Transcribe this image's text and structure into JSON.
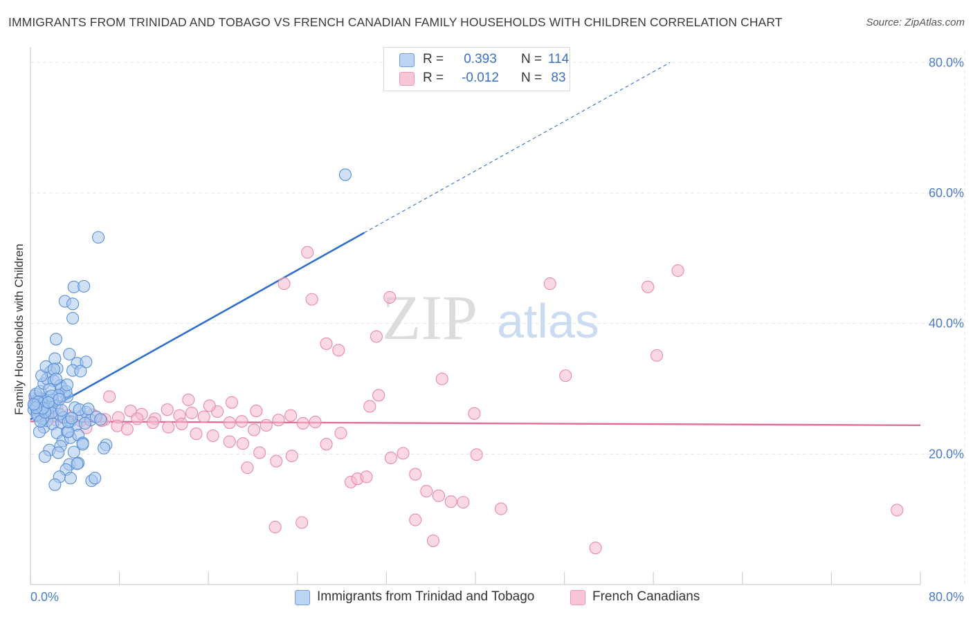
{
  "title": "IMMIGRANTS FROM TRINIDAD AND TOBAGO VS FRENCH CANADIAN FAMILY HOUSEHOLDS WITH CHILDREN CORRELATION CHART",
  "source": "Source: ZipAtlas.com",
  "watermark": {
    "zip": "ZIP",
    "atlas": "atlas"
  },
  "legend": {
    "rows": [
      {
        "r_label": "R =",
        "r_value": "0.393",
        "n_label": "N =",
        "n_value": "114"
      },
      {
        "r_label": "R =",
        "r_value": "-0.012",
        "n_label": "N =",
        "n_value": "83"
      }
    ]
  },
  "colors": {
    "blue_fill": "#a9c8ef",
    "blue_stroke": "#5a8fd6",
    "blue_line": "#2f6fcf",
    "pink_fill": "#f6b9cc",
    "pink_stroke": "#e889a8",
    "pink_line": "#e36c93",
    "grid": "#e3e3e3",
    "tick_label": "#4a7cc9"
  },
  "chart_data": {
    "type": "scatter",
    "title": "IMMIGRANTS FROM TRINIDAD AND TOBAGO VS FRENCH CANADIAN FAMILY HOUSEHOLDS WITH CHILDREN CORRELATION CHART",
    "xlabel": "",
    "ylabel": "Family Households with Children",
    "xlim": [
      0,
      80
    ],
    "ylim": [
      0,
      83
    ],
    "x_tick_labels": [
      "0.0%",
      "80.0%"
    ],
    "y_ticks": [
      20,
      40,
      60,
      80
    ],
    "y_tick_labels": [
      "20.0%",
      "40.0%",
      "60.0%",
      "80.0%"
    ],
    "grid": true,
    "legend_position": "top-center",
    "series": [
      {
        "name": "Immigrants from Trinidad and Tobago",
        "color": "#a9c8ef",
        "trend": {
          "x": [
            0,
            30
          ],
          "y": [
            25.3,
            53.9
          ],
          "extended_to": [
            57.5,
            80
          ]
        },
        "points": [
          [
            0.3,
            26.8
          ],
          [
            0.4,
            27.5
          ],
          [
            0.5,
            28.2
          ],
          [
            0.6,
            26.3
          ],
          [
            0.7,
            27.9
          ],
          [
            0.8,
            28.6
          ],
          [
            0.9,
            27.1
          ],
          [
            1.0,
            26.0
          ],
          [
            1.1,
            28.4
          ],
          [
            1.2,
            27.7
          ],
          [
            0.4,
            28.9
          ],
          [
            0.6,
            27.3
          ],
          [
            0.8,
            26.6
          ],
          [
            1.0,
            27.8
          ],
          [
            1.3,
            28.1
          ],
          [
            1.5,
            26.9
          ],
          [
            0.5,
            29.2
          ],
          [
            0.7,
            25.8
          ],
          [
            1.4,
            27.5
          ],
          [
            1.6,
            28.7
          ],
          [
            1.8,
            27.2
          ],
          [
            2.0,
            26.5
          ],
          [
            0.9,
            29.6
          ],
          [
            1.2,
            30.8
          ],
          [
            1.5,
            31.5
          ],
          [
            1.8,
            32.6
          ],
          [
            2.1,
            31.2
          ],
          [
            2.4,
            33.1
          ],
          [
            2.7,
            30.5
          ],
          [
            3.0,
            29.4
          ],
          [
            3.3,
            28.8
          ],
          [
            1.0,
            32.0
          ],
          [
            1.4,
            33.4
          ],
          [
            2.2,
            34.6
          ],
          [
            3.5,
            35.3
          ],
          [
            4.2,
            33.9
          ],
          [
            5.0,
            34.1
          ],
          [
            3.8,
            32.8
          ],
          [
            4.5,
            32.7
          ],
          [
            2.8,
            30.1
          ],
          [
            3.2,
            29.6
          ],
          [
            2.5,
            29.0
          ],
          [
            2.0,
            28.3
          ],
          [
            1.7,
            29.9
          ],
          [
            2.3,
            37.6
          ],
          [
            3.1,
            43.4
          ],
          [
            3.9,
            45.6
          ],
          [
            4.8,
            45.7
          ],
          [
            3.8,
            43.0
          ],
          [
            3.8,
            40.8
          ],
          [
            6.1,
            53.2
          ],
          [
            1.2,
            24.1
          ],
          [
            1.5,
            25.1
          ],
          [
            2.0,
            24.6
          ],
          [
            2.4,
            23.2
          ],
          [
            2.8,
            24.8
          ],
          [
            3.3,
            23.4
          ],
          [
            3.6,
            25.0
          ],
          [
            4.1,
            24.4
          ],
          [
            4.6,
            25.8
          ],
          [
            5.0,
            26.4
          ],
          [
            5.4,
            25.2
          ],
          [
            5.9,
            25.7
          ],
          [
            6.3,
            25.3
          ],
          [
            2.9,
            22.0
          ],
          [
            3.6,
            22.5
          ],
          [
            4.3,
            22.9
          ],
          [
            4.7,
            21.7
          ],
          [
            3.4,
            23.4
          ],
          [
            2.7,
            21.2
          ],
          [
            4.7,
            21.5
          ],
          [
            6.8,
            21.4
          ],
          [
            6.6,
            20.9
          ],
          [
            1.7,
            20.6
          ],
          [
            2.5,
            20.2
          ],
          [
            3.9,
            20.3
          ],
          [
            3.5,
            18.4
          ],
          [
            4.3,
            18.6
          ],
          [
            3.2,
            17.6
          ],
          [
            3.6,
            16.3
          ],
          [
            4.2,
            18.5
          ],
          [
            2.6,
            16.5
          ],
          [
            2.2,
            15.3
          ],
          [
            5.5,
            15.9
          ],
          [
            5.8,
            16.3
          ],
          [
            1.3,
            19.6
          ],
          [
            0.8,
            23.4
          ],
          [
            1.1,
            25.4
          ],
          [
            0.6,
            26.0
          ],
          [
            0.9,
            25.0
          ],
          [
            1.6,
            26.9
          ],
          [
            2.2,
            27.4
          ],
          [
            2.6,
            26.1
          ],
          [
            3.0,
            25.6
          ],
          [
            3.4,
            24.9
          ],
          [
            4.0,
            27.1
          ],
          [
            4.4,
            26.8
          ],
          [
            5.2,
            26.9
          ],
          [
            1.9,
            26.3
          ],
          [
            1.3,
            26.4
          ],
          [
            0.7,
            28.0
          ],
          [
            2.8,
            26.7
          ],
          [
            3.7,
            25.5
          ],
          [
            4.9,
            24.7
          ],
          [
            1.1,
            27.0
          ],
          [
            1.9,
            28.9
          ],
          [
            2.6,
            28.4
          ],
          [
            3.3,
            30.6
          ],
          [
            2.1,
            33.0
          ],
          [
            0.5,
            27.1
          ],
          [
            1.6,
            27.9
          ],
          [
            28.3,
            62.8
          ],
          [
            0.3,
            27.6
          ],
          [
            2.3,
            31.5
          ]
        ]
      },
      {
        "name": "French Canadians",
        "color": "#f6b9cc",
        "trend": {
          "x": [
            0,
            80
          ],
          "y": [
            25.0,
            24.4
          ]
        },
        "points": [
          [
            0.8,
            26.7
          ],
          [
            1.5,
            25.8
          ],
          [
            2.3,
            25.2
          ],
          [
            3.4,
            25.9
          ],
          [
            4.5,
            25.1
          ],
          [
            5.6,
            26.0
          ],
          [
            6.7,
            25.3
          ],
          [
            7.9,
            25.6
          ],
          [
            9.0,
            26.6
          ],
          [
            10.0,
            26.1
          ],
          [
            11.2,
            25.4
          ],
          [
            12.3,
            26.8
          ],
          [
            13.4,
            25.9
          ],
          [
            14.5,
            26.3
          ],
          [
            15.6,
            25.7
          ],
          [
            16.8,
            26.5
          ],
          [
            17.9,
            24.8
          ],
          [
            19.0,
            25.0
          ],
          [
            20.1,
            23.7
          ],
          [
            21.2,
            24.4
          ],
          [
            22.3,
            25.2
          ],
          [
            23.4,
            25.9
          ],
          [
            24.5,
            24.7
          ],
          [
            25.6,
            24.9
          ],
          [
            26.6,
            21.5
          ],
          [
            27.9,
            23.2
          ],
          [
            28.8,
            15.7
          ],
          [
            29.4,
            16.2
          ],
          [
            30.5,
            27.3
          ],
          [
            31.3,
            29.0
          ],
          [
            32.4,
            19.4
          ],
          [
            33.5,
            20.1
          ],
          [
            34.6,
            16.9
          ],
          [
            35.6,
            14.3
          ],
          [
            36.7,
            13.6
          ],
          [
            37.8,
            12.7
          ],
          [
            38.9,
            12.6
          ],
          [
            39.9,
            26.2
          ],
          [
            40.1,
            19.9
          ],
          [
            42.3,
            11.6
          ],
          [
            22.8,
            46.1
          ],
          [
            24.9,
            50.9
          ],
          [
            25.3,
            43.7
          ],
          [
            26.6,
            36.9
          ],
          [
            27.7,
            35.9
          ],
          [
            31.1,
            38.0
          ],
          [
            32.3,
            44.0
          ],
          [
            37.0,
            31.5
          ],
          [
            46.7,
            46.1
          ],
          [
            48.1,
            32.0
          ],
          [
            55.5,
            45.6
          ],
          [
            56.3,
            35.1
          ],
          [
            58.2,
            48.1
          ],
          [
            77.9,
            11.4
          ],
          [
            7.1,
            28.8
          ],
          [
            14.2,
            28.3
          ],
          [
            16.1,
            27.4
          ],
          [
            18.1,
            27.9
          ],
          [
            20.3,
            26.6
          ],
          [
            5.0,
            24.0
          ],
          [
            6.4,
            25.1
          ],
          [
            7.8,
            24.3
          ],
          [
            8.7,
            23.8
          ],
          [
            11.0,
            24.8
          ],
          [
            12.4,
            24.1
          ],
          [
            14.9,
            23.1
          ],
          [
            16.4,
            22.8
          ],
          [
            17.9,
            21.9
          ],
          [
            19.1,
            21.6
          ],
          [
            20.6,
            20.2
          ],
          [
            22.1,
            18.9
          ],
          [
            23.5,
            19.7
          ],
          [
            19.5,
            17.9
          ],
          [
            22.0,
            8.8
          ],
          [
            24.4,
            9.5
          ],
          [
            34.6,
            9.9
          ],
          [
            36.2,
            6.7
          ],
          [
            50.8,
            5.6
          ],
          [
            30.2,
            16.5
          ],
          [
            13.6,
            24.6
          ],
          [
            9.6,
            25.4
          ],
          [
            2.4,
            27.0
          ],
          [
            0.4,
            28.5
          ]
        ]
      }
    ]
  }
}
